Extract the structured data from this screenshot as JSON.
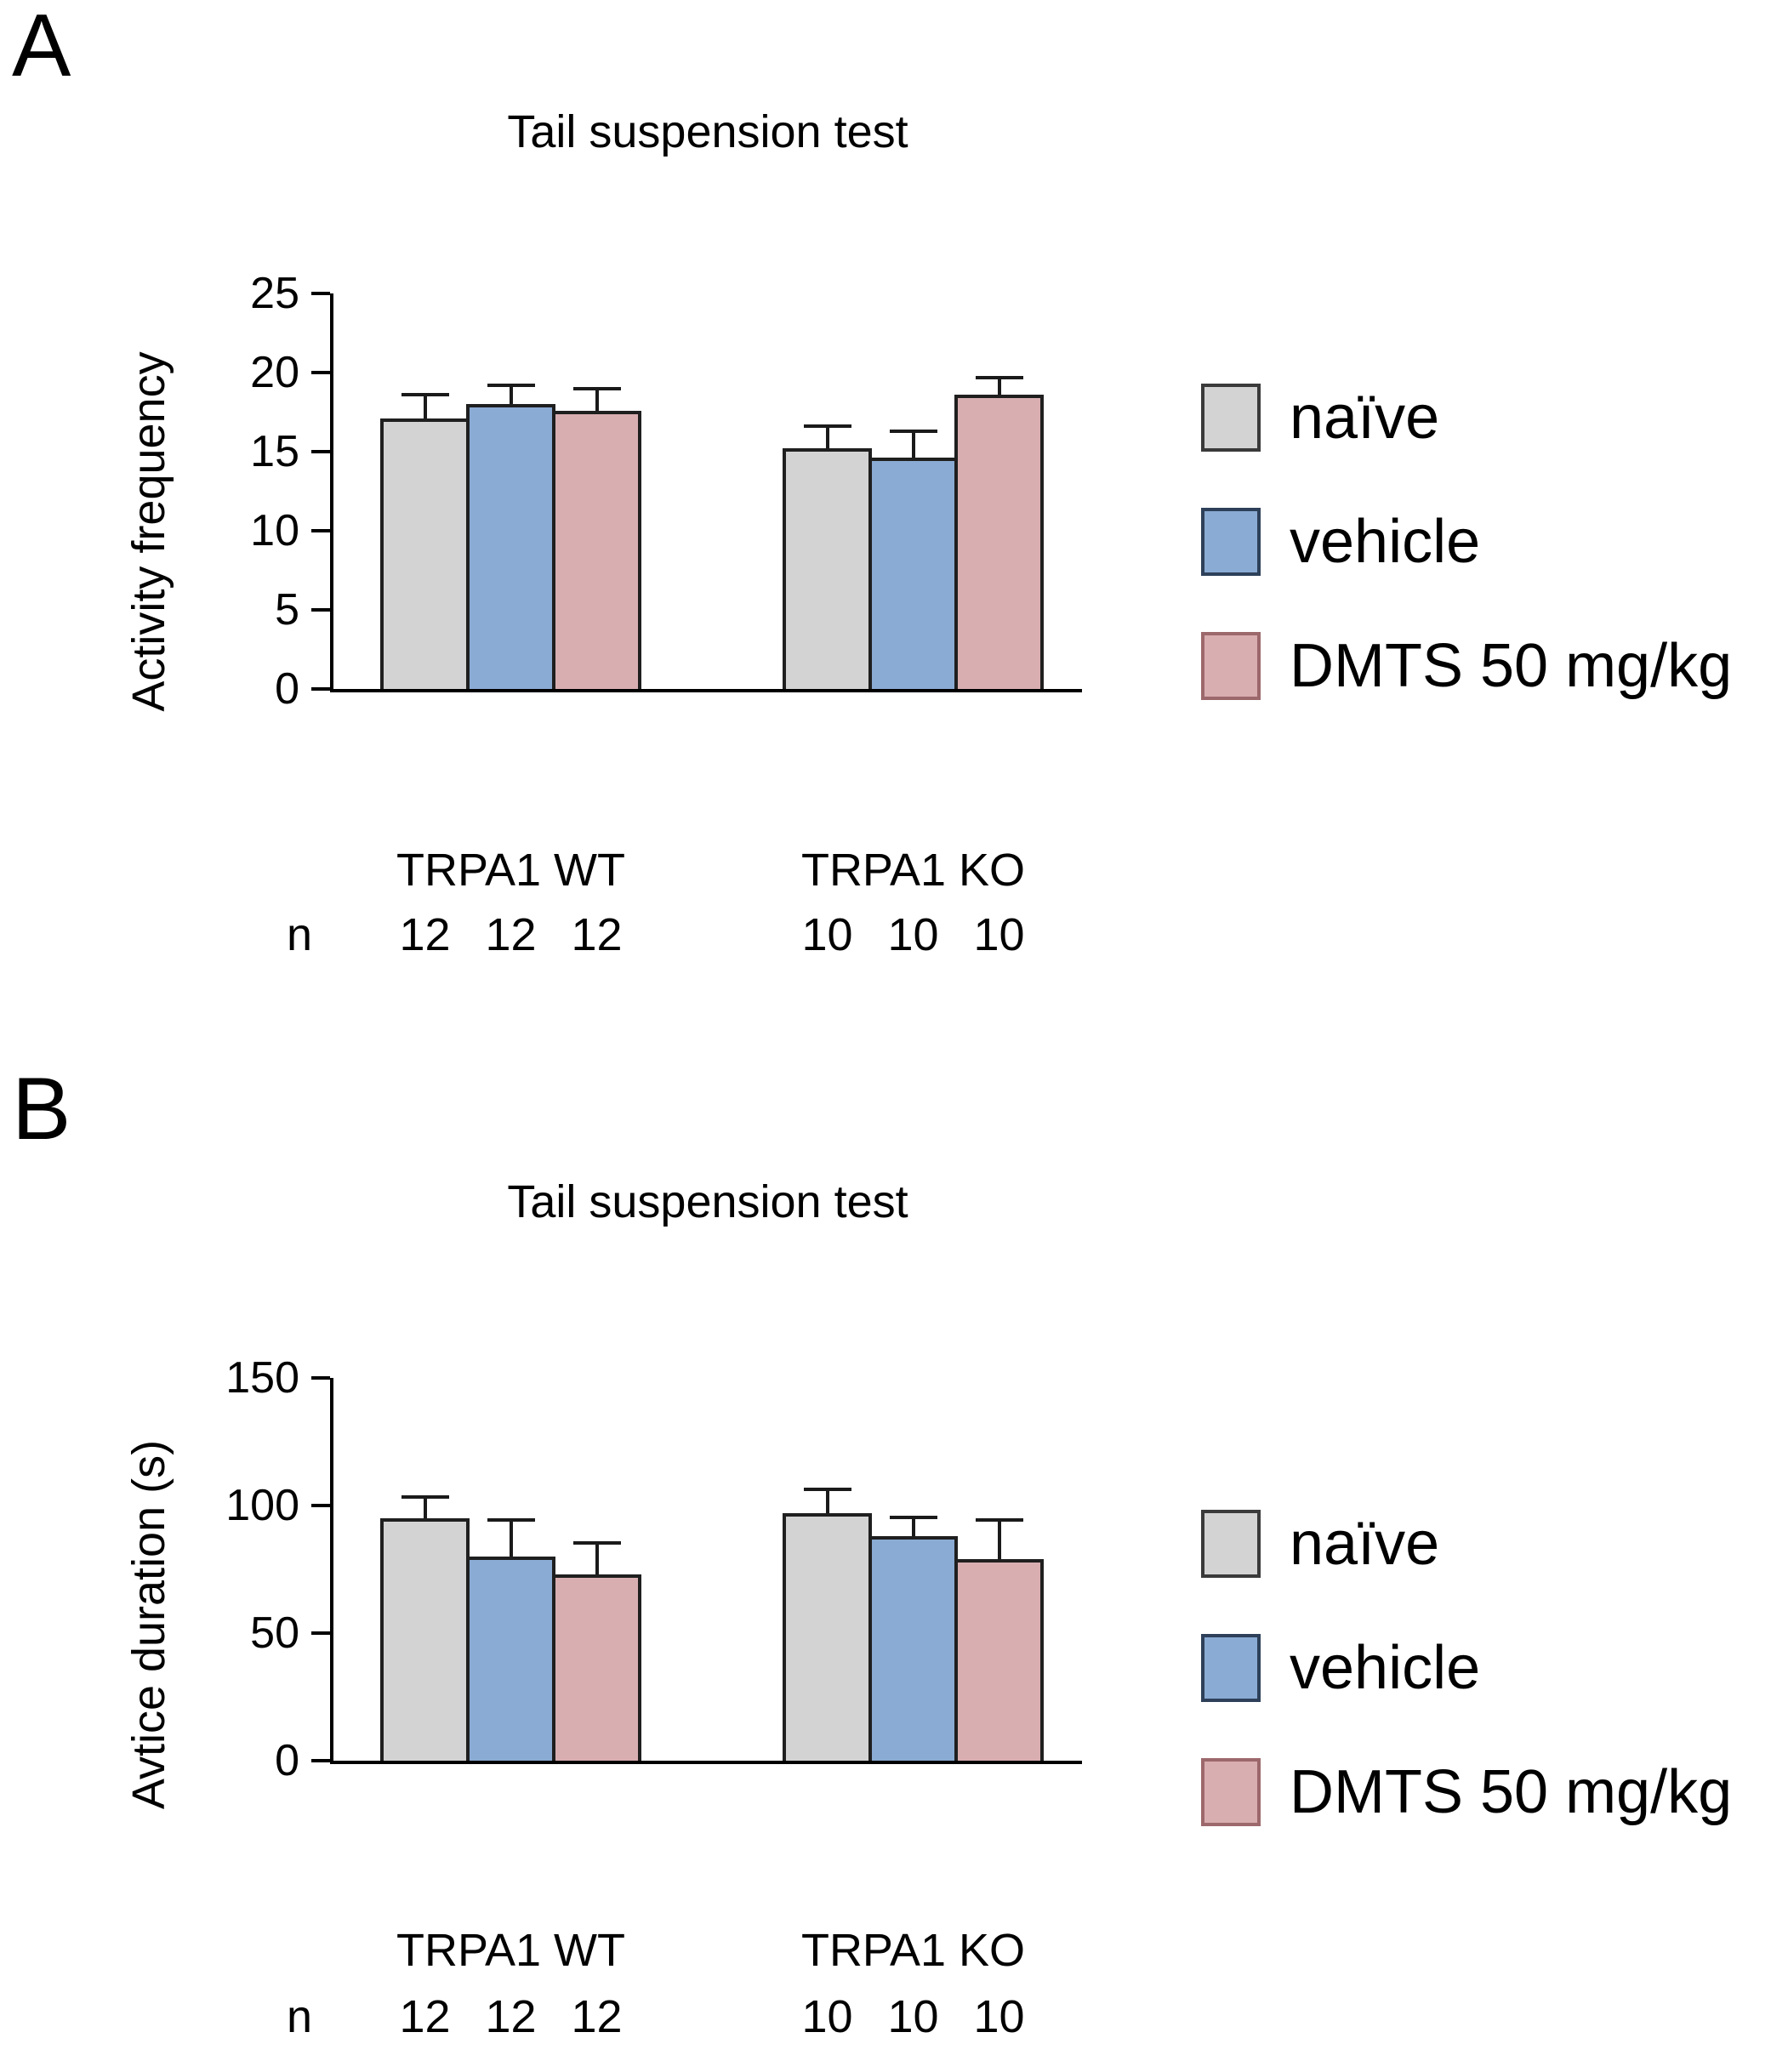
{
  "figure": {
    "panels": [
      {
        "letter": "A",
        "title": "Tail suspension test",
        "ylabel": "Activity frequency",
        "n_label": "n",
        "groups": [
          {
            "label": "TRPA1 WT",
            "n": [
              "12",
              "12",
              "12"
            ]
          },
          {
            "label": "TRPA1 KO",
            "n": [
              "10",
              "10",
              "10"
            ]
          }
        ]
      },
      {
        "letter": "B",
        "title": "Tail suspension test",
        "ylabel": "Avtice duration (s)",
        "n_label": "n",
        "groups": [
          {
            "label": "TRPA1 WT",
            "n": [
              "12",
              "12",
              "12"
            ]
          },
          {
            "label": "TRPA1 KO",
            "n": [
              "10",
              "10",
              "10"
            ]
          }
        ]
      }
    ]
  },
  "legend": {
    "items": [
      {
        "label": "naïve",
        "fill": "#d3d3d3",
        "border": "#3a3a3a"
      },
      {
        "label": "vehicle",
        "fill": "#8aabd3",
        "border": "#2e4059"
      },
      {
        "label": "DMTS 50 mg/kg",
        "fill": "#d9aeb1",
        "border": "#9c686c"
      }
    ]
  },
  "chart_data": [
    {
      "type": "bar",
      "title": "Tail suspension test",
      "xlabel": "",
      "ylabel": "Activity frequency",
      "ylim": [
        0,
        25
      ],
      "yticks": [
        0,
        5,
        10,
        15,
        20,
        25
      ],
      "categories": [
        "TRPA1 WT",
        "TRPA1 KO"
      ],
      "series": [
        {
          "name": "naïve",
          "values": [
            17.1,
            15.2
          ],
          "sem": [
            1.6,
            1.5
          ]
        },
        {
          "name": "vehicle",
          "values": [
            18.0,
            14.6
          ],
          "sem": [
            1.3,
            1.8
          ]
        },
        {
          "name": "DMTS 50 mg/kg",
          "values": [
            17.6,
            18.6
          ],
          "sem": [
            1.5,
            1.2
          ]
        }
      ],
      "n": {
        "TRPA1 WT": [
          12,
          12,
          12
        ],
        "TRPA1 KO": [
          10,
          10,
          10
        ]
      },
      "error_bars": "SEM, upper whisker only",
      "grid": false,
      "legend_position": "right"
    },
    {
      "type": "bar",
      "title": "Tail suspension test",
      "xlabel": "",
      "ylabel": "Avtice duration (s)",
      "ylim": [
        0,
        150
      ],
      "yticks": [
        0,
        50,
        100,
        150
      ],
      "categories": [
        "TRPA1 WT",
        "TRPA1 KO"
      ],
      "series": [
        {
          "name": "naïve",
          "values": [
            95,
            97
          ],
          "sem": [
            9,
            10
          ]
        },
        {
          "name": "vehicle",
          "values": [
            80,
            88
          ],
          "sem": [
            15,
            8
          ]
        },
        {
          "name": "DMTS 50 mg/kg",
          "values": [
            73,
            79
          ],
          "sem": [
            13,
            16
          ]
        }
      ],
      "n": {
        "TRPA1 WT": [
          12,
          12,
          12
        ],
        "TRPA1 KO": [
          10,
          10,
          10
        ]
      },
      "error_bars": "SEM, upper whisker only",
      "grid": false,
      "legend_position": "right"
    }
  ]
}
